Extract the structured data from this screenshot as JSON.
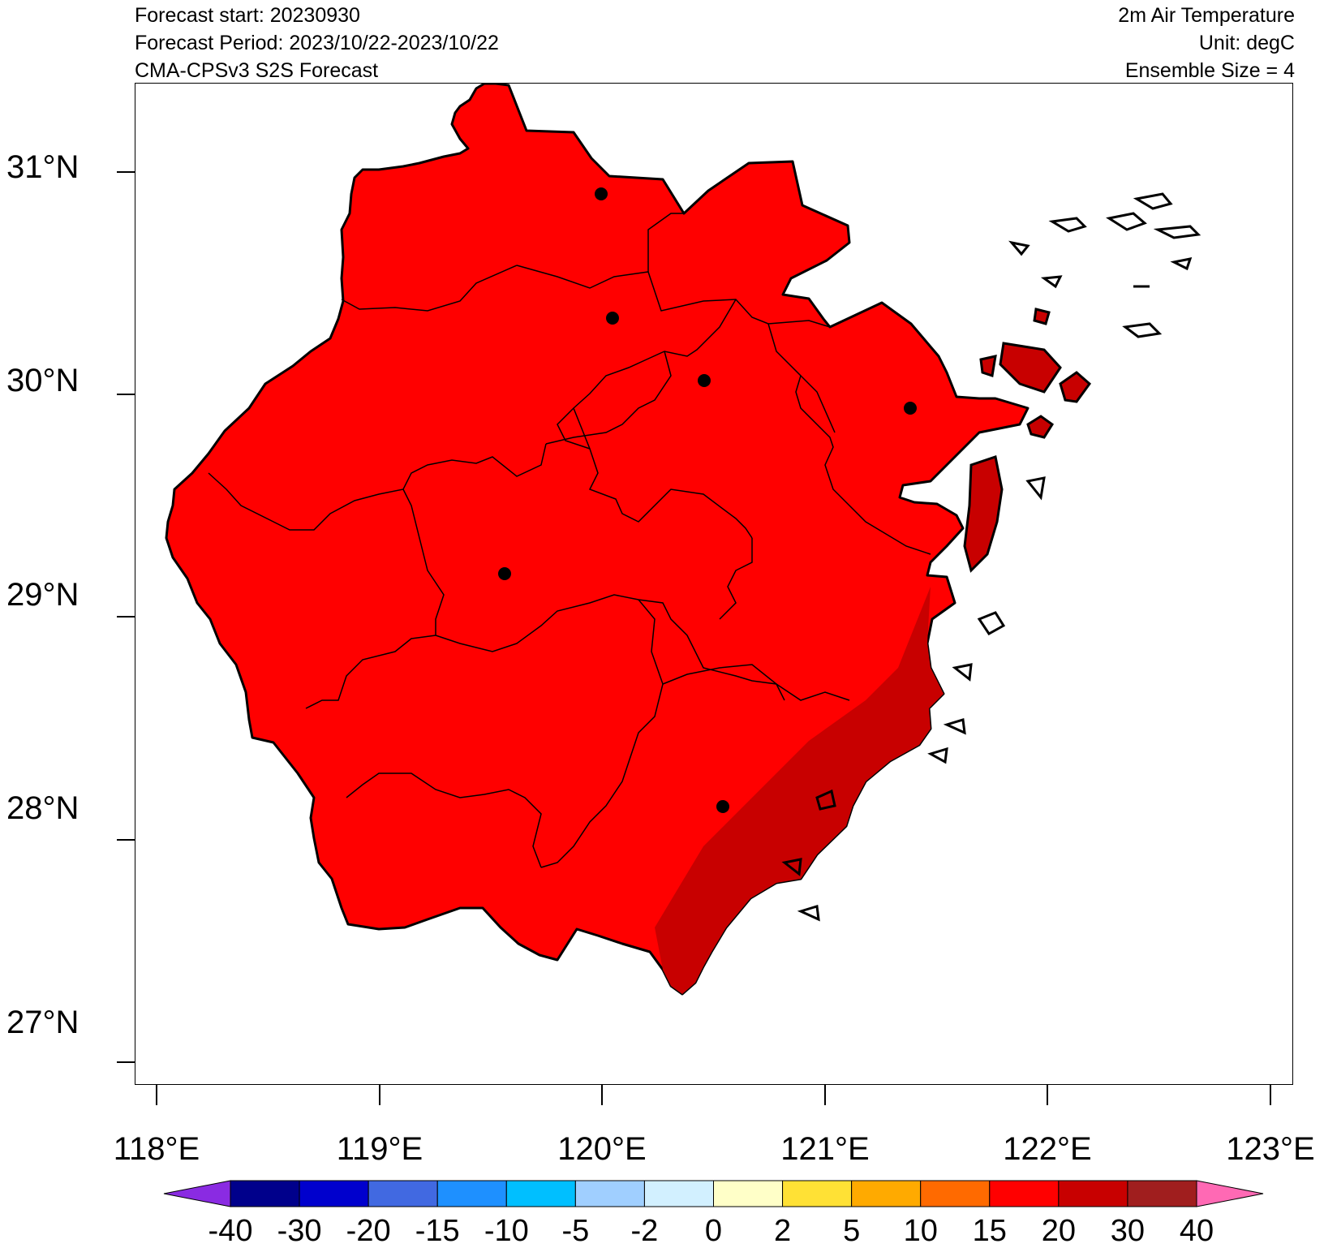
{
  "header": {
    "left": [
      "Forecast start: 20230930",
      "Forecast Period: 2023/10/22-2023/10/22",
      "CMA-CPSv3 S2S Forecast"
    ],
    "right": [
      "2m Air Temperature",
      "Unit: degC",
      "Ensemble Size = 4"
    ]
  },
  "axes": {
    "lat_ticks": [
      "31°N",
      "30°N",
      "29°N",
      "28°N",
      "27°N"
    ],
    "lon_ticks": [
      "118°E",
      "119°E",
      "120°E",
      "121°E",
      "122°E",
      "123°E"
    ]
  },
  "colorbar": {
    "labels": [
      "-40",
      "-30",
      "-20",
      "-15",
      "-10",
      "-5",
      "-2",
      "0",
      "2",
      "5",
      "10",
      "15",
      "20",
      "30",
      "40"
    ],
    "colors": [
      "#8a2be2",
      "#00008b",
      "#0000cd",
      "#4169e1",
      "#1e90ff",
      "#00bfff",
      "#a0cfff",
      "#d2f0ff",
      "#ffffc8",
      "#ffe135",
      "#ffaa00",
      "#ff6a00",
      "#ff0000",
      "#c80000",
      "#a01e1e",
      "#ff69b4"
    ]
  },
  "map": {
    "region_fill": "#ff0000",
    "coastal_fill": "#c80000",
    "city_marker_count": 6
  }
}
